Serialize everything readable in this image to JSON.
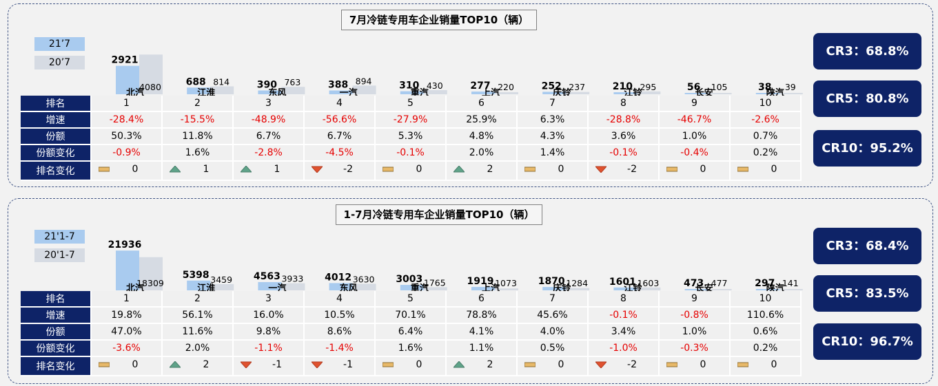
{
  "colors": {
    "bar_current": "#a9cbef",
    "bar_previous": "#d6dbe3",
    "header_bg": "#0e2367",
    "negative_text": "#e60000",
    "arrow_up": "#5fa389",
    "arrow_down": "#e0522f",
    "flat_marker": "#e8b969"
  },
  "icons": {
    "up": "up-arrow-icon",
    "down": "down-arrow-icon",
    "flat": "flat-bar-icon"
  },
  "panels": [
    {
      "title": "7月冷链专用车企业销量TOP10（辆）",
      "legend": {
        "current": "21’7",
        "previous": "20’7"
      },
      "row_headers": {
        "rank": "排名",
        "growth": "增速",
        "share": "份额",
        "share_change": "份额变化",
        "rank_change": "排名变化"
      },
      "rows": [
        {
          "name": "北汽",
          "rank": "1",
          "growth": "-28.4%",
          "share": "50.3%",
          "share_change": "-0.9%",
          "rank_change": "0",
          "rank_dir": "flat"
        },
        {
          "name": "江淮",
          "rank": "2",
          "growth": "-15.5%",
          "share": "11.8%",
          "share_change": "1.6%",
          "rank_change": "1",
          "rank_dir": "up"
        },
        {
          "name": "东风",
          "rank": "3",
          "growth": "-48.9%",
          "share": "6.7%",
          "share_change": "-2.8%",
          "rank_change": "1",
          "rank_dir": "up"
        },
        {
          "name": "一汽",
          "rank": "4",
          "growth": "-56.6%",
          "share": "6.7%",
          "share_change": "-4.5%",
          "rank_change": "-2",
          "rank_dir": "down"
        },
        {
          "name": "重汽",
          "rank": "5",
          "growth": "-27.9%",
          "share": "5.3%",
          "share_change": "-0.1%",
          "rank_change": "0",
          "rank_dir": "flat"
        },
        {
          "name": "上汽",
          "rank": "6",
          "growth": "25.9%",
          "share": "4.8%",
          "share_change": "2.0%",
          "rank_change": "2",
          "rank_dir": "up"
        },
        {
          "name": "庆铃",
          "rank": "7",
          "growth": "6.3%",
          "share": "4.3%",
          "share_change": "1.4%",
          "rank_change": "0",
          "rank_dir": "flat"
        },
        {
          "name": "江铃",
          "rank": "8",
          "growth": "-28.8%",
          "share": "3.6%",
          "share_change": "-0.1%",
          "rank_change": "-2",
          "rank_dir": "down"
        },
        {
          "name": "长安",
          "rank": "9",
          "growth": "-46.7%",
          "share": "1.0%",
          "share_change": "-0.4%",
          "rank_change": "0",
          "rank_dir": "flat"
        },
        {
          "name": "陕汽",
          "rank": "10",
          "growth": "-2.6%",
          "share": "0.7%",
          "share_change": "0.2%",
          "rank_change": "0",
          "rank_dir": "flat"
        }
      ],
      "cr": [
        "CR3：68.8%",
        "CR5：80.8%",
        "CR10：95.2%"
      ]
    },
    {
      "title": "1-7月冷链专用车企业销量TOP10（辆）",
      "legend": {
        "current": "21'1-7",
        "previous": "20'1-7"
      },
      "row_headers": {
        "rank": "排名",
        "growth": "增速",
        "share": "份额",
        "share_change": "份额变化",
        "rank_change": "排名变化"
      },
      "rows": [
        {
          "name": "北汽",
          "rank": "1",
          "growth": "19.8%",
          "share": "47.0%",
          "share_change": "-3.6%",
          "rank_change": "0",
          "rank_dir": "flat"
        },
        {
          "name": "江淮",
          "rank": "2",
          "growth": "56.1%",
          "share": "11.6%",
          "share_change": "2.0%",
          "rank_change": "2",
          "rank_dir": "up"
        },
        {
          "name": "一汽",
          "rank": "3",
          "growth": "16.0%",
          "share": "9.8%",
          "share_change": "-1.1%",
          "rank_change": "-1",
          "rank_dir": "down"
        },
        {
          "name": "东风",
          "rank": "4",
          "growth": "10.5%",
          "share": "8.6%",
          "share_change": "-1.4%",
          "rank_change": "-1",
          "rank_dir": "down"
        },
        {
          "name": "重汽",
          "rank": "5",
          "growth": "70.1%",
          "share": "6.4%",
          "share_change": "1.6%",
          "rank_change": "0",
          "rank_dir": "flat"
        },
        {
          "name": "上汽",
          "rank": "6",
          "growth": "78.8%",
          "share": "4.1%",
          "share_change": "1.1%",
          "rank_change": "2",
          "rank_dir": "up"
        },
        {
          "name": "庆铃",
          "rank": "7",
          "growth": "45.6%",
          "share": "4.0%",
          "share_change": "0.5%",
          "rank_change": "0",
          "rank_dir": "flat"
        },
        {
          "name": "江铃",
          "rank": "8",
          "growth": "-0.1%",
          "share": "3.4%",
          "share_change": "-1.0%",
          "rank_change": "-2",
          "rank_dir": "down"
        },
        {
          "name": "长安",
          "rank": "9",
          "growth": "-0.8%",
          "share": "1.0%",
          "share_change": "-0.3%",
          "rank_change": "0",
          "rank_dir": "flat"
        },
        {
          "name": "陕汽",
          "rank": "10",
          "growth": "110.6%",
          "share": "0.6%",
          "share_change": "0.2%",
          "rank_change": "0",
          "rank_dir": "flat"
        }
      ],
      "cr": [
        "CR3：68.4%",
        "CR5：83.5%",
        "CR10：96.7%"
      ]
    }
  ],
  "chart_data": [
    {
      "type": "bar",
      "title": "7月冷链专用车企业销量TOP10（辆）",
      "categories": [
        "北汽",
        "江淮",
        "东风",
        "一汽",
        "重汽",
        "上汽",
        "庆铃",
        "江铃",
        "长安",
        "陕汽"
      ],
      "series": [
        {
          "name": "21’7",
          "values": [
            2921,
            688,
            390,
            388,
            310,
            277,
            252,
            210,
            56,
            38
          ]
        },
        {
          "name": "20’7",
          "values": [
            4080,
            814,
            763,
            894,
            430,
            220,
            237,
            295,
            105,
            39
          ]
        }
      ],
      "ylim": [
        0,
        4100
      ]
    },
    {
      "type": "bar",
      "title": "1-7月冷链专用车企业销量TOP10（辆）",
      "categories": [
        "北汽",
        "江淮",
        "一汽",
        "东风",
        "重汽",
        "上汽",
        "庆铃",
        "江铃",
        "长安",
        "陕汽"
      ],
      "series": [
        {
          "name": "21'1-7",
          "values": [
            21936,
            5398,
            4563,
            4012,
            3003,
            1919,
            1870,
            1601,
            473,
            297
          ]
        },
        {
          "name": "20'1-7",
          "values": [
            18309,
            3459,
            3933,
            3630,
            1765,
            1073,
            1284,
            1603,
            477,
            141
          ]
        }
      ],
      "ylim": [
        0,
        22000
      ]
    }
  ]
}
